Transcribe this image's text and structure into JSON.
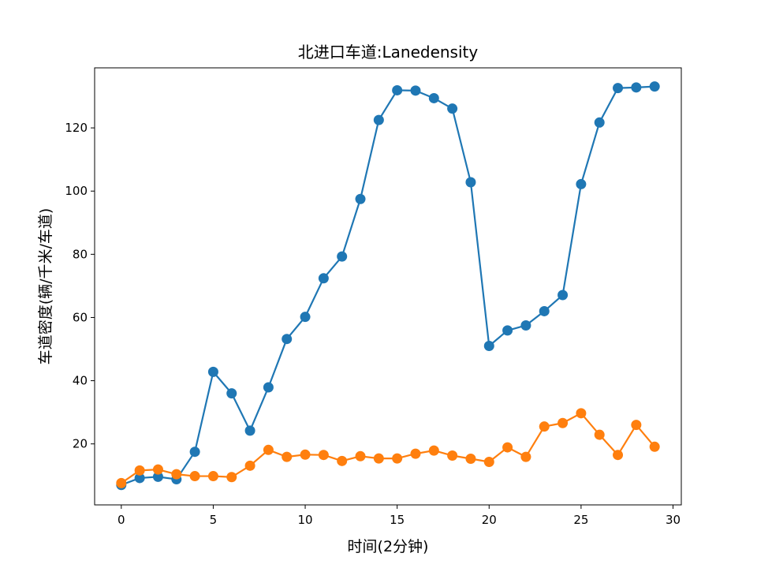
{
  "chart_data": {
    "type": "line",
    "title": "北进口车道:Lanedensity",
    "xlabel": "时间(2分钟)",
    "ylabel": "车道密度(辆/千米/车道)",
    "xlim": [
      -1.45,
      30.45
    ],
    "ylim": [
      0.7,
      139.0
    ],
    "xticks": [
      0,
      5,
      10,
      15,
      20,
      25,
      30
    ],
    "yticks": [
      20,
      40,
      60,
      80,
      100,
      120
    ],
    "grid": false,
    "x": [
      0,
      1,
      2,
      3,
      4,
      5,
      6,
      7,
      8,
      9,
      10,
      11,
      12,
      13,
      14,
      15,
      16,
      17,
      18,
      19,
      20,
      21,
      22,
      23,
      24,
      25,
      26,
      27,
      28,
      29
    ],
    "series": [
      {
        "color": "#1f77b4",
        "values": [
          7.0,
          9.2,
          9.6,
          8.8,
          17.5,
          42.8,
          36.0,
          24.2,
          37.9,
          53.2,
          60.2,
          72.4,
          79.3,
          97.5,
          122.5,
          131.9,
          131.8,
          129.4,
          126.1,
          102.8,
          51.0,
          55.9,
          57.5,
          62.0,
          67.1,
          102.2,
          121.7,
          132.6,
          132.8,
          133.1
        ]
      },
      {
        "color": "#ff7f0e",
        "values": [
          7.6,
          11.6,
          11.9,
          10.4,
          9.8,
          9.8,
          9.5,
          13.1,
          18.1,
          15.9,
          16.6,
          16.5,
          14.6,
          16.1,
          15.4,
          15.4,
          16.9,
          17.9,
          16.3,
          15.3,
          14.3,
          18.9,
          15.9,
          25.5,
          26.6,
          29.7,
          22.9,
          16.5,
          26.0,
          19.1
        ]
      }
    ]
  }
}
